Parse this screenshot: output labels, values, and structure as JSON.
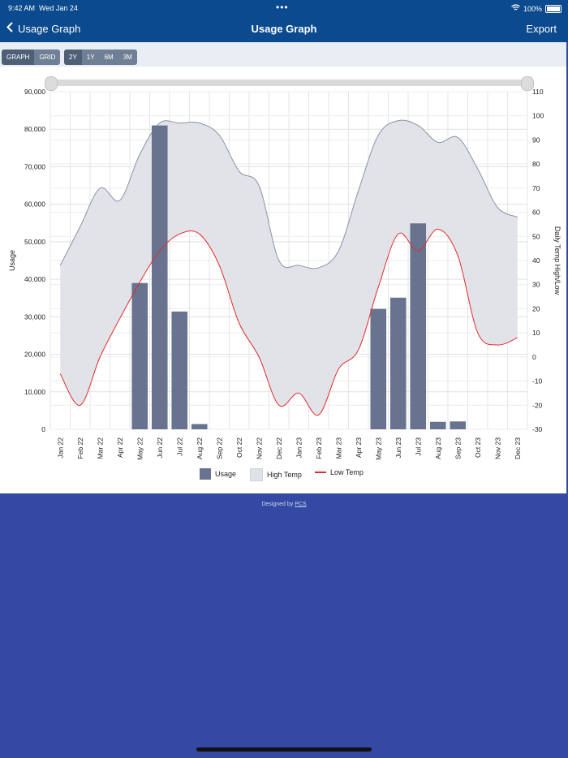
{
  "status_bar": {
    "time": "9:42 AM",
    "date": "Wed Jan 24",
    "battery": "100%"
  },
  "nav": {
    "back_label": "Usage Graph",
    "title": "Usage Graph",
    "export_label": "Export"
  },
  "view_toggle": {
    "graph": "GRAPH",
    "grid": "GRID",
    "active": "GRAPH"
  },
  "range_toggle": {
    "options": [
      "2Y",
      "1Y",
      "6M",
      "3M"
    ],
    "active": "2Y"
  },
  "footer": {
    "prefix": "Designed by",
    "link": "PCS"
  },
  "colors": {
    "usage": "#67738f",
    "high_temp_fill": "#dfe2e8",
    "high_temp_line": "#8a93a7",
    "low_temp": "#e32b2b",
    "header": "#0b4a8e",
    "background": "#3349a3"
  },
  "chart_data": {
    "type": "bar+area+line",
    "categories": [
      "Jan 22",
      "Feb 22",
      "Mar 22",
      "Apr 22",
      "May 22",
      "Jun 22",
      "Jul 22",
      "Aug 22",
      "Sep 22",
      "Oct 22",
      "Nov 22",
      "Dec 22",
      "Jan 23",
      "Feb 23",
      "Mar 23",
      "Apr 23",
      "May 23",
      "Jun 23",
      "Jul 23",
      "Aug 23",
      "Sep 23",
      "Oct 23",
      "Nov 23",
      "Dec 23"
    ],
    "y_left": {
      "label": "Usage",
      "range": [
        0,
        90000
      ],
      "ticks": [
        0,
        10000,
        20000,
        30000,
        40000,
        50000,
        60000,
        70000,
        80000,
        90000
      ],
      "tick_labels": [
        "0",
        "10,000",
        "20,000",
        "30,000",
        "40,000",
        "50,000",
        "60,000",
        "70,000",
        "80,000",
        "90,000"
      ]
    },
    "y_right": {
      "label": "Daily Temp High/Low",
      "range": [
        -30,
        110
      ],
      "ticks": [
        -30,
        -20,
        -10,
        0,
        10,
        20,
        30,
        40,
        50,
        60,
        70,
        80,
        90,
        100,
        110
      ],
      "tick_labels": [
        "-30",
        "-20",
        "-10",
        "0",
        "10",
        "20",
        "30",
        "40",
        "50",
        "60",
        "70",
        "80",
        "90",
        "100",
        "110"
      ]
    },
    "series": [
      {
        "name": "Usage",
        "type": "bar",
        "axis": "left",
        "values": [
          0,
          0,
          0,
          0,
          39000,
          81000,
          31400,
          1400,
          0,
          0,
          0,
          0,
          0,
          0,
          0,
          0,
          32100,
          35100,
          54900,
          2000,
          2100,
          0,
          0,
          0
        ]
      },
      {
        "name": "High Temp",
        "type": "area",
        "axis": "right",
        "values": [
          38,
          54,
          70,
          65,
          84,
          97,
          97,
          97,
          92,
          77,
          71,
          40,
          38,
          37,
          44,
          69,
          92,
          98,
          96,
          89,
          91,
          78,
          62,
          58
        ]
      },
      {
        "name": "Low Temp",
        "type": "line",
        "axis": "right",
        "values": [
          -7,
          -20,
          0,
          16,
          31,
          44,
          51,
          51,
          38,
          14,
          0,
          -20,
          -15,
          -24,
          -5,
          3,
          29,
          51,
          44,
          53,
          42,
          10,
          5,
          8
        ]
      }
    ],
    "legend": [
      "Usage",
      "High Temp",
      "Low Temp"
    ],
    "legend_position": "bottom-center",
    "grid": true
  }
}
